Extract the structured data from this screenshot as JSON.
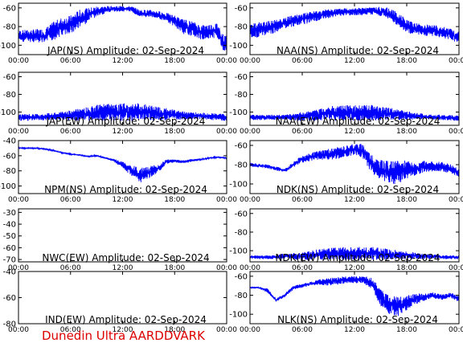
{
  "footer": {
    "text": "Dunedin Ultra AARDDVARK",
    "color": "#dd0000"
  },
  "trace_color": "#0000ff",
  "chart_data": [
    {
      "type": "line",
      "title": "JAP(NS) Amplitude: 02-Sep-2024",
      "ylim": [
        -110,
        -55
      ],
      "yticks": [
        -100,
        -80,
        -60
      ],
      "xlim": [
        0,
        24
      ],
      "xticks": [
        "00:00",
        "06:00",
        "12:00",
        "18:00",
        "00:00"
      ],
      "series": [
        {
          "x": [
            0,
            3,
            4,
            5,
            6,
            7,
            8,
            9,
            10,
            11,
            12,
            13,
            14,
            15,
            16,
            17,
            18,
            19,
            20,
            21,
            22,
            23,
            23.7,
            24
          ],
          "values": [
            -90,
            -90,
            -85,
            -80,
            -78,
            -72,
            -68,
            -64,
            -62,
            -61,
            -61,
            -61,
            -66,
            -66,
            -67,
            -70,
            -74,
            -80,
            -82,
            -86,
            -85,
            -84,
            -100,
            -95
          ],
          "spread": [
            6,
            8,
            10,
            10,
            10,
            10,
            8,
            6,
            4,
            3,
            3,
            3,
            4,
            4,
            4,
            5,
            6,
            8,
            8,
            8,
            8,
            8,
            10,
            8
          ]
        }
      ]
    },
    {
      "type": "line",
      "title": "NAA(NS) Amplitude: 02-Sep-2024",
      "ylim": [
        -110,
        -55
      ],
      "yticks": [
        -100,
        -80,
        -60
      ],
      "xlim": [
        0,
        24
      ],
      "xticks": [
        "00:00",
        "06:00",
        "12:00",
        "18:00",
        "00:00"
      ],
      "series": [
        {
          "x": [
            0,
            2,
            4,
            6,
            7,
            8,
            9,
            10,
            11,
            12,
            13,
            14,
            15,
            16,
            17,
            18,
            19,
            20,
            21,
            22,
            23,
            24
          ],
          "values": [
            -85,
            -82,
            -76,
            -72,
            -70,
            -68,
            -66,
            -65,
            -64,
            -64,
            -64,
            -63,
            -64,
            -66,
            -72,
            -80,
            -82,
            -84,
            -84,
            -86,
            -88,
            -92
          ],
          "spread": [
            8,
            8,
            6,
            6,
            6,
            5,
            5,
            4,
            4,
            4,
            4,
            4,
            5,
            6,
            8,
            8,
            6,
            6,
            6,
            6,
            6,
            6
          ]
        }
      ]
    },
    {
      "type": "line",
      "title": "JAP(EW) Amplitude: 02-Sep-2024",
      "ylim": [
        -115,
        -55
      ],
      "yticks": [
        -100,
        -80,
        -60
      ],
      "xlim": [
        0,
        24
      ],
      "xticks": [
        "00:00",
        "06:00",
        "12:00",
        "18:00",
        "00:00"
      ],
      "series": [
        {
          "x": [
            0,
            2,
            4,
            6,
            8,
            10,
            12,
            14,
            16,
            18,
            20,
            22,
            24
          ],
          "values": [
            -106,
            -106,
            -105,
            -104,
            -102,
            -100,
            -100,
            -100,
            -102,
            -103,
            -104,
            -105,
            -106
          ],
          "spread": [
            4,
            4,
            4,
            6,
            8,
            10,
            10,
            10,
            8,
            6,
            4,
            4,
            4
          ]
        }
      ]
    },
    {
      "type": "line",
      "title": "NAA(EW) Amplitude: 02-Sep-2024",
      "ylim": [
        -115,
        -55
      ],
      "yticks": [
        -100,
        -80,
        -60
      ],
      "xlim": [
        0,
        24
      ],
      "xticks": [
        "00:00",
        "06:00",
        "12:00",
        "18:00",
        "00:00"
      ],
      "series": [
        {
          "x": [
            0,
            2,
            4,
            6,
            8,
            10,
            12,
            14,
            16,
            18,
            20,
            22,
            24
          ],
          "values": [
            -106,
            -106,
            -106,
            -105,
            -103,
            -101,
            -101,
            -101,
            -102,
            -104,
            -105,
            -106,
            -107
          ],
          "spread": [
            3,
            3,
            3,
            5,
            7,
            9,
            9,
            9,
            7,
            5,
            3,
            3,
            3
          ]
        }
      ]
    },
    {
      "type": "line",
      "title": "NPM(NS) Amplitude: 02-Sep-2024",
      "ylim": [
        -110,
        -40
      ],
      "yticks": [
        -100,
        -80,
        -60,
        -40
      ],
      "xlim": [
        0,
        24
      ],
      "xticks": [
        "00:00",
        "06:00",
        "12:00",
        "18:00",
        "00:00"
      ],
      "series": [
        {
          "x": [
            0,
            2,
            3,
            4,
            5,
            6,
            7,
            8,
            9,
            10,
            11,
            12,
            13,
            14,
            15,
            16,
            17,
            18,
            19,
            20,
            21,
            22,
            23,
            24
          ],
          "values": [
            -50,
            -50,
            -51,
            -53,
            -56,
            -58,
            -59,
            -61,
            -60,
            -63,
            -66,
            -72,
            -80,
            -86,
            -82,
            -78,
            -68,
            -67,
            -68,
            -66,
            -65,
            -63,
            -62,
            -63
          ],
          "spread": [
            1,
            1,
            1,
            1,
            1,
            1,
            1,
            1,
            1,
            1,
            2,
            4,
            8,
            10,
            8,
            6,
            3,
            2,
            2,
            2,
            1,
            1,
            1,
            1
          ]
        }
      ]
    },
    {
      "type": "line",
      "title": "NDK(NS) Amplitude: 02-Sep-2024",
      "ylim": [
        -110,
        -55
      ],
      "yticks": [
        -100,
        -80,
        -60
      ],
      "xlim": [
        0,
        24
      ],
      "xticks": [
        "00:00",
        "06:00",
        "12:00",
        "18:00",
        "00:00"
      ],
      "series": [
        {
          "x": [
            0,
            2,
            3,
            4,
            5,
            6,
            7,
            8,
            9,
            10,
            11,
            12,
            13,
            14,
            15,
            16,
            17,
            18,
            19,
            20,
            21,
            22,
            23,
            24
          ],
          "values": [
            -80,
            -82,
            -84,
            -86,
            -80,
            -74,
            -72,
            -70,
            -69,
            -68,
            -66,
            -64,
            -66,
            -80,
            -85,
            -88,
            -88,
            -85,
            -85,
            -82,
            -82,
            -82,
            -84,
            -88
          ],
          "spread": [
            2,
            2,
            2,
            2,
            3,
            4,
            4,
            5,
            6,
            6,
            6,
            6,
            8,
            10,
            10,
            12,
            12,
            10,
            6,
            6,
            5,
            5,
            5,
            5
          ]
        }
      ]
    },
    {
      "type": "line",
      "title": "NWC(EW) Amplitude: 02-Sep-2024",
      "ylim": [
        -72,
        -27
      ],
      "yticks": [
        -70,
        -60,
        -50,
        -40,
        -30
      ],
      "xlim": [
        0,
        24
      ],
      "xticks": [
        "00:00",
        "06:00",
        "12:00",
        "18:00",
        "00:00"
      ],
      "series": []
    },
    {
      "type": "line",
      "title": "NDK(EW) Amplitude: 02-Sep-2024",
      "ylim": [
        -112,
        -55
      ],
      "yticks": [
        -100,
        -80,
        -60
      ],
      "xlim": [
        0,
        24
      ],
      "xticks": [
        "00:00",
        "06:00",
        "12:00",
        "18:00",
        "00:00"
      ],
      "series": [
        {
          "x": [
            0,
            2,
            4,
            6,
            8,
            10,
            12,
            14,
            16,
            18,
            20,
            22,
            24
          ],
          "values": [
            -107,
            -107,
            -106,
            -106,
            -104,
            -103,
            -103,
            -103,
            -104,
            -105,
            -106,
            -107,
            -107
          ],
          "spread": [
            2,
            2,
            3,
            4,
            6,
            7,
            7,
            7,
            6,
            4,
            3,
            2,
            2
          ]
        }
      ]
    },
    {
      "type": "line",
      "title": "IND(EW) Amplitude: 02-Sep-2024",
      "ylim": [
        -80,
        -40
      ],
      "yticks": [
        -80,
        -60,
        -40
      ],
      "xlim": [
        0,
        24
      ],
      "xticks": [
        "00:00",
        "06:00",
        "12:00",
        "18:00",
        "00:00"
      ],
      "series": []
    },
    {
      "type": "line",
      "title": "NLK(NS) Amplitude: 02-Sep-2024",
      "ylim": [
        -110,
        -55
      ],
      "yticks": [
        -100,
        -80,
        -60
      ],
      "xlim": [
        0,
        24
      ],
      "xticks": [
        "00:00",
        "06:00",
        "12:00",
        "18:00",
        "00:00"
      ],
      "series": [
        {
          "x": [
            0,
            1,
            2,
            3,
            4,
            5,
            6,
            7,
            8,
            9,
            10,
            11,
            12,
            13,
            14,
            15,
            16,
            17,
            18,
            19,
            20,
            21,
            22,
            23,
            24
          ],
          "values": [
            -72,
            -72,
            -75,
            -85,
            -80,
            -72,
            -70,
            -68,
            -66,
            -66,
            -65,
            -64,
            -64,
            -63,
            -68,
            -82,
            -90,
            -92,
            -88,
            -84,
            -82,
            -80,
            -82,
            -80,
            -84
          ],
          "spread": [
            1,
            1,
            2,
            2,
            2,
            2,
            2,
            2,
            3,
            4,
            4,
            4,
            4,
            4,
            6,
            10,
            10,
            10,
            8,
            6,
            4,
            3,
            3,
            3,
            3
          ]
        }
      ]
    }
  ]
}
